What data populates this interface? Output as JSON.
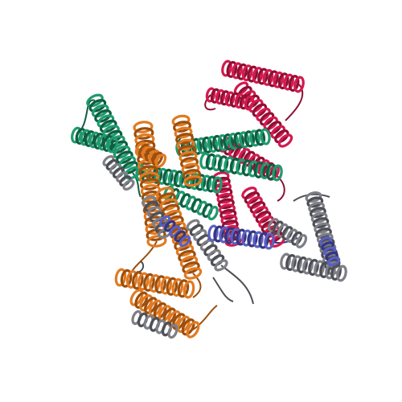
{
  "image": {
    "subject": "protein-structure-cartoon",
    "background_color": "#ffffff"
  },
  "chains": [
    {
      "name": "chain-red",
      "color": "#d21a4f",
      "shade": "#8f0f33"
    },
    {
      "name": "chain-teal",
      "color": "#1f9a6e",
      "shade": "#0f5e42"
    },
    {
      "name": "chain-orange",
      "color": "#e07a22",
      "shade": "#9c4f0e"
    },
    {
      "name": "chain-gray",
      "color": "#7e7f86",
      "shade": "#4e4f55"
    },
    {
      "name": "chain-blue",
      "color": "#5b5fc0",
      "shade": "#33367e"
    }
  ]
}
